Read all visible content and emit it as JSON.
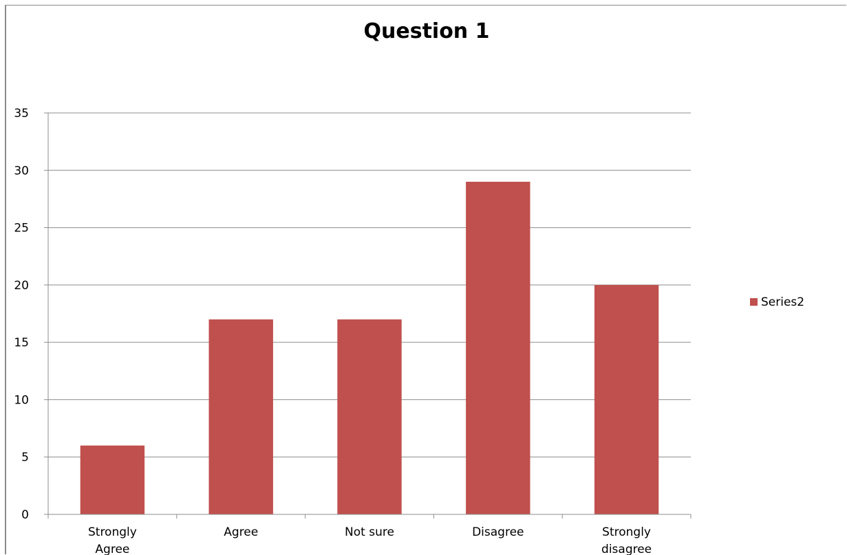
{
  "chart_data": {
    "type": "bar",
    "title": "Question 1",
    "categories": [
      [
        "Strongly",
        "Agree"
      ],
      [
        "Agree"
      ],
      [
        "Not sure"
      ],
      [
        "Disagree"
      ],
      [
        "Strongly",
        "disagree"
      ]
    ],
    "series": [
      {
        "name": "Series2",
        "values": [
          6,
          17,
          17,
          29,
          20
        ],
        "color": "#c0504d"
      }
    ],
    "ylim": [
      0,
      35
    ],
    "yticks": [
      0,
      5,
      10,
      15,
      20,
      25,
      30,
      35
    ],
    "grid": true,
    "legend_position": "right"
  }
}
